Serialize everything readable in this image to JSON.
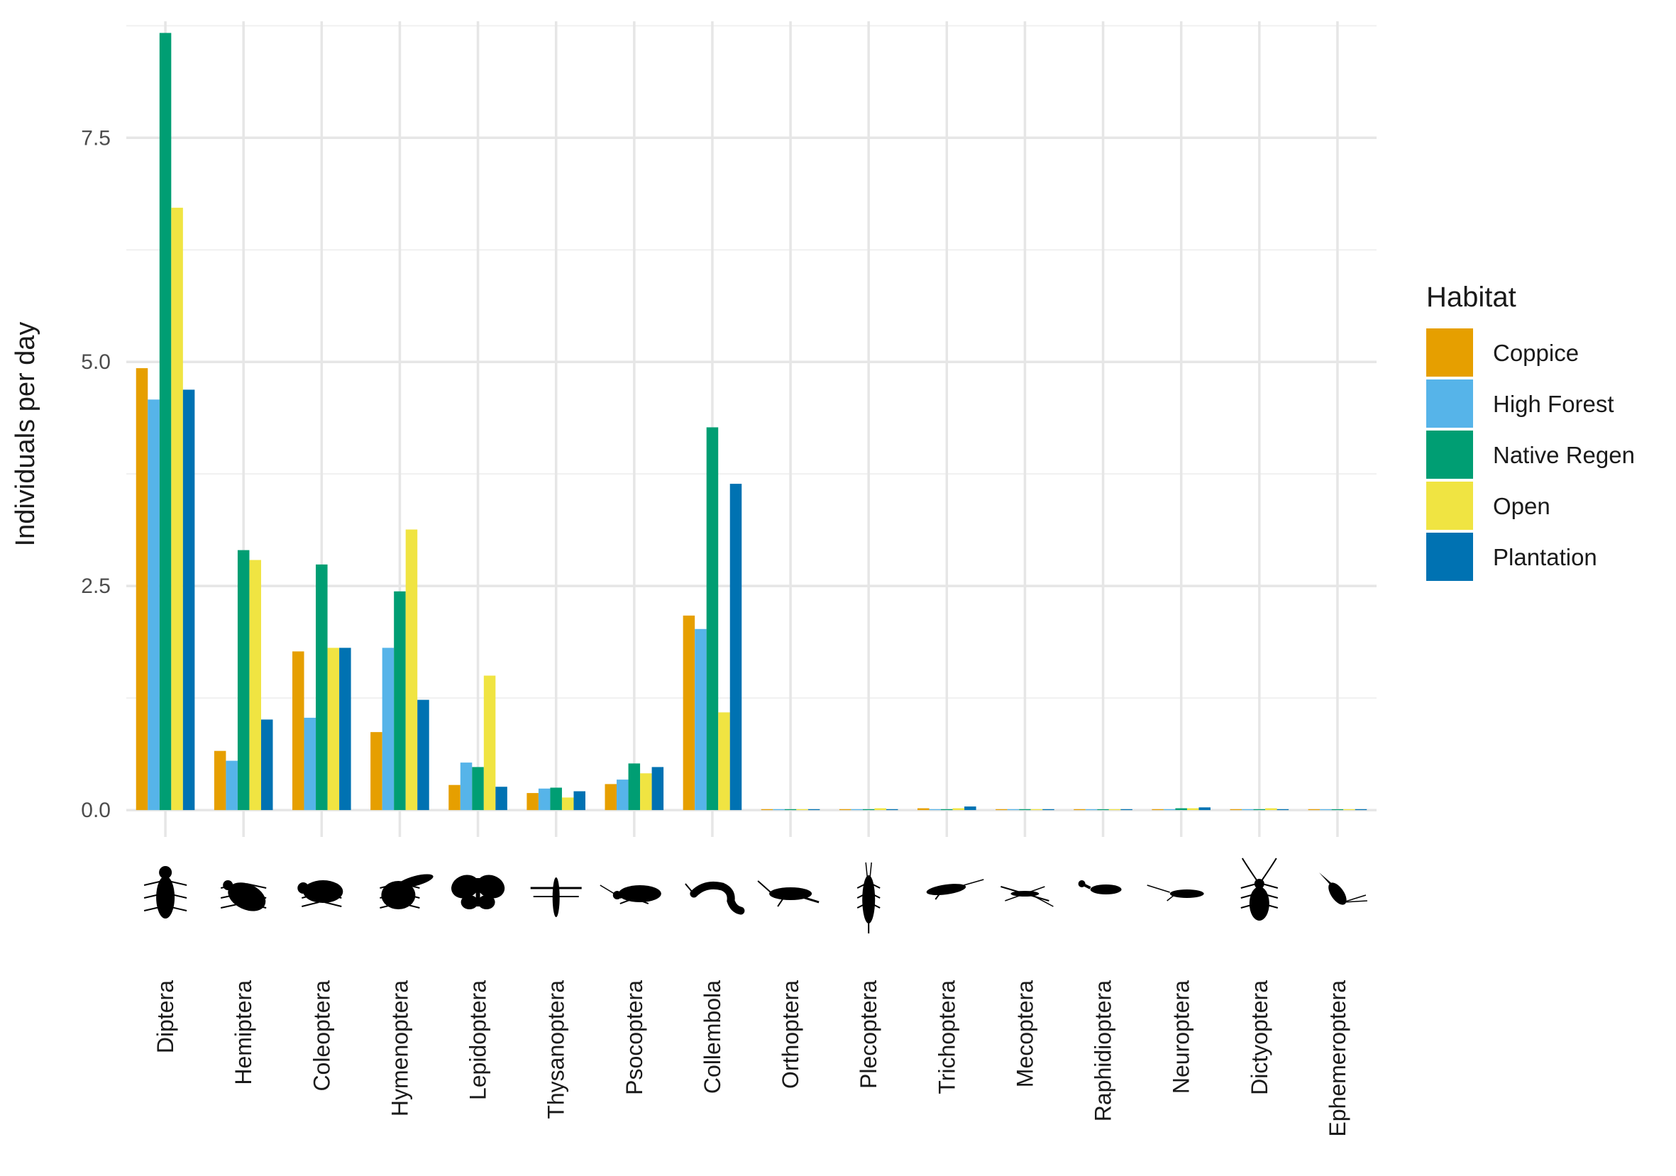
{
  "chart_data": {
    "type": "bar",
    "ylabel": "Individuals per day",
    "xlabel": "",
    "ylim": [
      -0.3,
      8.8
    ],
    "yticks": [
      0.0,
      2.5,
      5.0,
      7.5
    ],
    "ytick_labels": [
      "0.0",
      "2.5",
      "5.0",
      "7.5"
    ],
    "grid": true,
    "legend": {
      "title": "Habitat",
      "position": "right"
    },
    "categories": [
      "Diptera",
      "Hemiptera",
      "Coleoptera",
      "Hymenoptera",
      "Lepidoptera",
      "Thysanoptera",
      "Psocoptera",
      "Collembola",
      "Orthoptera",
      "Plecoptera",
      "Trichoptera",
      "Mecoptera",
      "Raphidioptera",
      "Neuroptera",
      "Dictyoptera",
      "Ephemeroptera"
    ],
    "series": [
      {
        "name": "Coppice",
        "color": "#E69F00",
        "values": [
          4.93,
          0.66,
          1.77,
          0.87,
          0.28,
          0.19,
          0.29,
          2.17,
          0.01,
          0.01,
          0.02,
          0.01,
          0.01,
          0.01,
          0.01,
          0.01
        ]
      },
      {
        "name": "High Forest",
        "color": "#56B4E9",
        "values": [
          4.58,
          0.55,
          1.03,
          1.81,
          0.53,
          0.24,
          0.34,
          2.02,
          0.01,
          0.01,
          0.01,
          0.01,
          0.0,
          0.01,
          0.01,
          0.0
        ]
      },
      {
        "name": "Native Regen",
        "color": "#009E73",
        "values": [
          8.67,
          2.9,
          2.74,
          2.44,
          0.48,
          0.25,
          0.52,
          4.27,
          0.01,
          0.01,
          0.01,
          0.01,
          0.0,
          0.02,
          0.01,
          0.0
        ]
      },
      {
        "name": "Open",
        "color": "#F0E442",
        "values": [
          6.72,
          2.79,
          1.81,
          3.13,
          1.5,
          0.14,
          0.41,
          1.09,
          0.01,
          0.02,
          0.02,
          0.01,
          0.0,
          0.02,
          0.02,
          0.0
        ]
      },
      {
        "name": "Plantation",
        "color": "#0072B2",
        "values": [
          4.69,
          1.01,
          1.81,
          1.23,
          0.26,
          0.21,
          0.48,
          3.64,
          0.01,
          0.01,
          0.04,
          0.01,
          0.01,
          0.03,
          0.01,
          0.01
        ]
      }
    ],
    "icons": [
      "fly-silhouette-icon",
      "bug-silhouette-icon",
      "beetle-silhouette-icon",
      "bee-silhouette-icon",
      "butterfly-silhouette-icon",
      "thrips-silhouette-icon",
      "booklouse-silhouette-icon",
      "springtail-silhouette-icon",
      "cricket-silhouette-icon",
      "stonefly-silhouette-icon",
      "caddisfly-silhouette-icon",
      "scorpionfly-silhouette-icon",
      "snakefly-silhouette-icon",
      "lacewing-silhouette-icon",
      "cockroach-silhouette-icon",
      "mayfly-silhouette-icon"
    ]
  }
}
